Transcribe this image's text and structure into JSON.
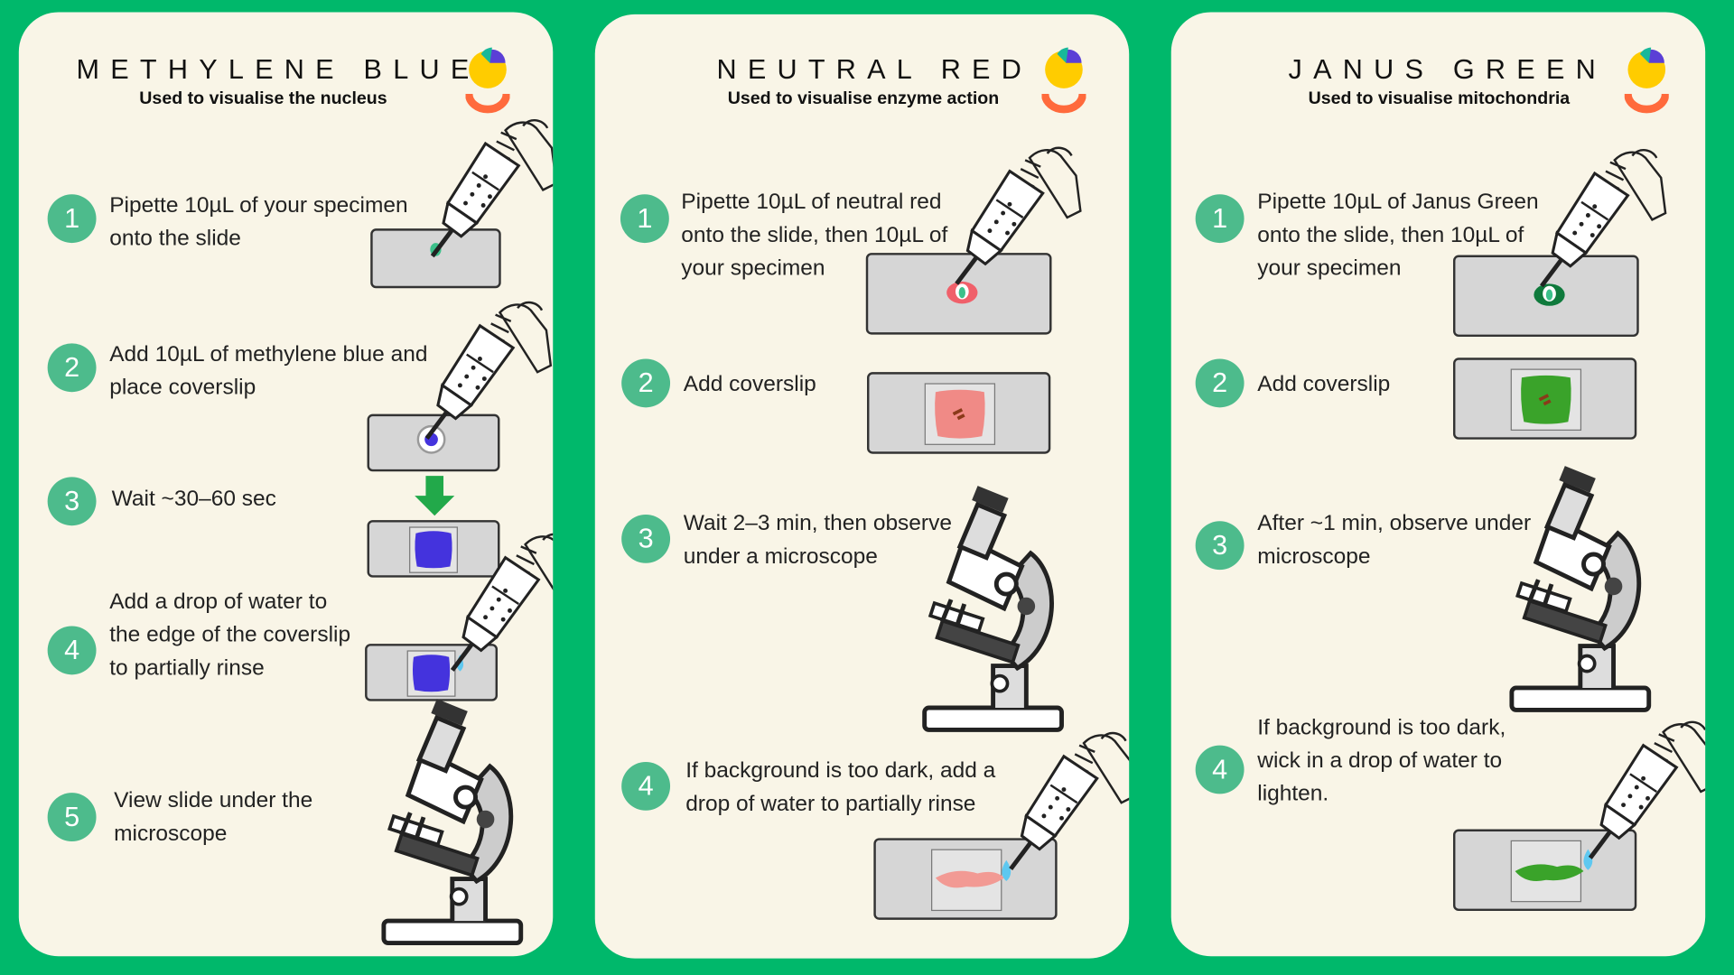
{
  "colors": {
    "background": "#00b86b",
    "panel": "#f9f5e7",
    "step_circle": "#4dbb8c",
    "methylene_blue": "#4433dd",
    "neutral_red": "#f08a86",
    "janus_green": "#3aa32a",
    "logo_yellow": "#ffcc00",
    "logo_orange": "#ff6a3c",
    "logo_purple": "#5b3fd6",
    "logo_teal": "#18b89a",
    "arrow_green": "#22a94a"
  },
  "icons": [
    "pipette-icon",
    "microscope-icon",
    "glass-slide-icon",
    "down-arrow-icon",
    "logo-icon"
  ],
  "panels": [
    {
      "title": "METHYLENE BLUE",
      "subtitle": "Used to visualise the nucleus",
      "steps": [
        {
          "num": "1",
          "text": "Pipette 10µL of your specimen onto the slide"
        },
        {
          "num": "2",
          "text": "Add 10µL of methylene blue and place coverslip"
        },
        {
          "num": "3",
          "text": "Wait ~30–60 sec"
        },
        {
          "num": "4",
          "text": "Add a drop of water to the edge of the coverslip to partially rinse"
        },
        {
          "num": "5",
          "text": "View slide under the microscope"
        }
      ]
    },
    {
      "title": "NEUTRAL RED",
      "subtitle": "Used to visualise enzyme action",
      "steps": [
        {
          "num": "1",
          "text": "Pipette 10µL of neutral red onto the slide, then 10µL of your specimen"
        },
        {
          "num": "2",
          "text": "Add coverslip"
        },
        {
          "num": "3",
          "text": "Wait 2–3 min, then observe under a microscope"
        },
        {
          "num": "4",
          "text": "If background is too dark, add a drop of water to partially rinse"
        }
      ]
    },
    {
      "title": "JANUS GREEN",
      "subtitle": "Used to visualise mitochondria",
      "steps": [
        {
          "num": "1",
          "text": "Pipette 10µL of Janus Green onto the slide, then 10µL of your specimen"
        },
        {
          "num": "2",
          "text": "Add coverslip"
        },
        {
          "num": "3",
          "text": "After ~1 min, observe under microscope"
        },
        {
          "num": "4",
          "text": "If background is too dark, wick in a drop of water to lighten."
        }
      ]
    }
  ]
}
